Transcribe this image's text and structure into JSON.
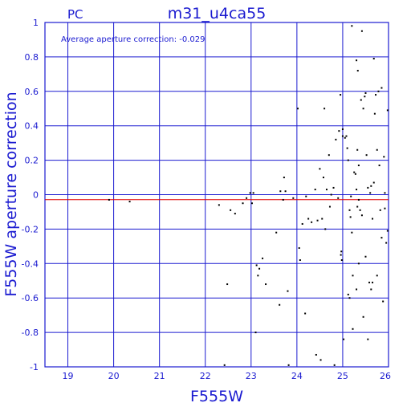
{
  "chart_data": {
    "type": "scatter",
    "title": "m31_u4ca55",
    "camera_label": "PC",
    "xlabel": "F555W",
    "ylabel": "F555W aperture correction",
    "annotation": "Average aperture correction: -0.029",
    "average": -0.029,
    "xlim": [
      18.5,
      26
    ],
    "ylim": [
      -1,
      1
    ],
    "x_ticks": [
      19,
      20,
      21,
      22,
      23,
      24,
      25,
      26
    ],
    "y_ticks": [
      -1,
      -0.8,
      -0.6,
      -0.4,
      -0.2,
      0,
      0.2,
      0.4,
      0.6,
      0.8,
      1
    ],
    "y_tick_labels": [
      "-1",
      "-0.8",
      "-0.6",
      "-0.4",
      "-0.2",
      "0",
      "0.2",
      "0.4",
      "0.6",
      "0.8",
      "1"
    ],
    "grid": true,
    "colors": {
      "axis": "#1a1ad0",
      "points": "#000000",
      "average_line": "#e00000"
    },
    "points": [
      [
        19.9,
        -0.03
      ],
      [
        20.35,
        -0.04
      ],
      [
        22.3,
        -0.06
      ],
      [
        22.42,
        -0.99
      ],
      [
        22.48,
        -0.52
      ],
      [
        22.55,
        -0.09
      ],
      [
        22.65,
        -0.11
      ],
      [
        22.82,
        -0.05
      ],
      [
        22.9,
        -0.02
      ],
      [
        22.98,
        0.01
      ],
      [
        23.02,
        -0.05
      ],
      [
        23.05,
        0.01
      ],
      [
        23.1,
        -0.8
      ],
      [
        23.12,
        -0.41
      ],
      [
        23.15,
        -0.47
      ],
      [
        23.18,
        -0.43
      ],
      [
        23.25,
        -0.37
      ],
      [
        23.32,
        -0.52
      ],
      [
        23.55,
        -0.22
      ],
      [
        23.62,
        -0.64
      ],
      [
        23.64,
        0.02
      ],
      [
        23.7,
        -0.03
      ],
      [
        23.72,
        0.1
      ],
      [
        23.75,
        0.02
      ],
      [
        23.8,
        -0.56
      ],
      [
        23.82,
        -0.99
      ],
      [
        23.92,
        -0.02
      ],
      [
        24.02,
        0.5
      ],
      [
        24.05,
        -0.31
      ],
      [
        24.07,
        -0.38
      ],
      [
        24.12,
        -0.17
      ],
      [
        24.18,
        -0.69
      ],
      [
        24.2,
        -0.01
      ],
      [
        24.25,
        -0.14
      ],
      [
        24.32,
        -0.16
      ],
      [
        24.4,
        0.03
      ],
      [
        24.42,
        -0.93
      ],
      [
        24.45,
        -0.15
      ],
      [
        24.5,
        0.15
      ],
      [
        24.52,
        -0.96
      ],
      [
        24.55,
        -0.14
      ],
      [
        24.58,
        0.1
      ],
      [
        24.6,
        0.5
      ],
      [
        24.62,
        -0.2
      ],
      [
        24.65,
        0.03
      ],
      [
        24.7,
        0.23
      ],
      [
        24.72,
        -0.07
      ],
      [
        24.75,
        0.0
      ],
      [
        24.8,
        0.04
      ],
      [
        24.82,
        -0.99
      ],
      [
        24.85,
        0.32
      ],
      [
        24.9,
        -0.02
      ],
      [
        24.92,
        0.37
      ],
      [
        24.95,
        0.58
      ],
      [
        24.96,
        -0.35
      ],
      [
        24.97,
        -0.33
      ],
      [
        24.98,
        -0.38
      ],
      [
        25.0,
        0.38
      ],
      [
        25.0,
        0.34
      ],
      [
        25.02,
        -0.84
      ],
      [
        25.05,
        0.33
      ],
      [
        25.08,
        0.34
      ],
      [
        25.1,
        0.27
      ],
      [
        25.12,
        -0.58
      ],
      [
        25.15,
        -0.09
      ],
      [
        25.15,
        -0.6
      ],
      [
        25.17,
        -0.13
      ],
      [
        25.18,
        -0.01
      ],
      [
        25.2,
        0.98
      ],
      [
        25.22,
        -0.47
      ],
      [
        25.22,
        -0.78
      ],
      [
        25.25,
        0.13
      ],
      [
        25.28,
        0.12
      ],
      [
        25.3,
        -0.55
      ],
      [
        25.3,
        0.03
      ],
      [
        25.32,
        0.26
      ],
      [
        25.32,
        -0.07
      ],
      [
        25.33,
        0.72
      ],
      [
        25.35,
        -0.03
      ],
      [
        25.35,
        0.17
      ],
      [
        25.38,
        -0.09
      ],
      [
        25.4,
        0.55
      ],
      [
        25.42,
        0.95
      ],
      [
        25.42,
        -0.12
      ],
      [
        25.45,
        0.5
      ],
      [
        25.48,
        0.57
      ],
      [
        25.5,
        -0.36
      ],
      [
        25.5,
        0.59
      ],
      [
        25.52,
        0.23
      ],
      [
        25.55,
        0.04
      ],
      [
        25.58,
        -0.51
      ],
      [
        25.6,
        0.01
      ],
      [
        25.62,
        0.05
      ],
      [
        25.65,
        -0.14
      ],
      [
        25.65,
        -0.51
      ],
      [
        25.68,
        0.79
      ],
      [
        25.68,
        0.07
      ],
      [
        25.7,
        0.47
      ],
      [
        25.72,
        0.58
      ],
      [
        25.75,
        0.26
      ],
      [
        25.78,
        0.6
      ],
      [
        25.8,
        0.17
      ],
      [
        25.82,
        -0.09
      ],
      [
        25.85,
        -0.25
      ],
      [
        25.85,
        0.62
      ],
      [
        25.9,
        0.22
      ],
      [
        25.92,
        0.01
      ],
      [
        25.95,
        -0.28
      ],
      [
        25.98,
        -0.21
      ],
      [
        25.98,
        0.49
      ],
      [
        25.12,
        0.2
      ],
      [
        25.3,
        0.78
      ],
      [
        25.45,
        -0.71
      ],
      [
        25.35,
        -0.4
      ],
      [
        25.55,
        -0.84
      ],
      [
        25.62,
        -0.55
      ],
      [
        25.88,
        -0.62
      ],
      [
        25.92,
        -0.08
      ],
      [
        25.2,
        -0.22
      ],
      [
        25.75,
        -0.47
      ]
    ]
  }
}
